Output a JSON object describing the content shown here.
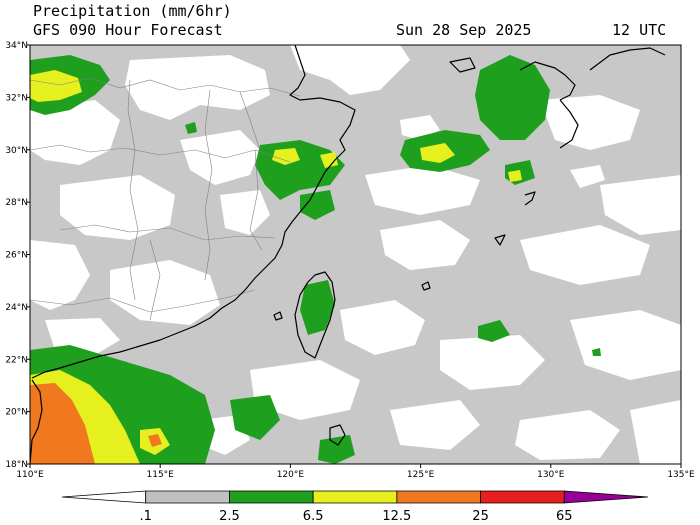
{
  "header": {
    "title": "Precipitation (mm/6hr)",
    "model": "GFS 090 Hour Forecast",
    "date": "Sun 28 Sep 2025",
    "time": "12 UTC"
  },
  "map": {
    "lon_range": [
      110,
      135
    ],
    "lat_range": [
      18,
      34
    ],
    "lon_ticks": [
      "110°E",
      "115°E",
      "120°E",
      "125°E",
      "130°E",
      "135°E"
    ],
    "lat_ticks": [
      "34°N",
      "32°N",
      "30°N",
      "28°N",
      "26°N",
      "24°N",
      "22°N",
      "20°N",
      "18°N"
    ]
  },
  "colorbar": {
    "labels": [
      ".1",
      "2.5",
      "6.5",
      "12.5",
      "25",
      "65"
    ],
    "colors": [
      "#ffffff",
      "#c0c0c0",
      "#1ea01e",
      "#e6f01e",
      "#f0781e",
      "#e61e1e",
      "#960096"
    ]
  }
}
